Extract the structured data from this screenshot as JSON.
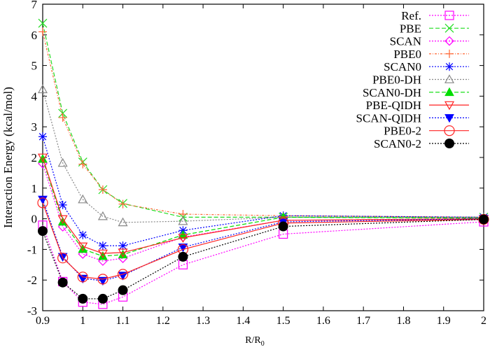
{
  "chart_data": {
    "type": "line",
    "title": "",
    "xlabel": "R/R",
    "xlabel_sub": "0",
    "ylabel": "Interaction Energy (kcal/mol)",
    "xlim": [
      0.9,
      2.0
    ],
    "ylim": [
      -3,
      7
    ],
    "xticks": [
      0.9,
      1.0,
      1.1,
      1.2,
      1.3,
      1.4,
      1.5,
      1.6,
      1.7,
      1.8,
      1.9,
      2.0
    ],
    "xtick_labels": [
      "0.9",
      "1",
      "1.1",
      "1.2",
      "1.3",
      "1.4",
      "1.5",
      "1.6",
      "1.7",
      "1.8",
      "1.9",
      "2"
    ],
    "yticks": [
      -3,
      -2,
      -1,
      0,
      1,
      2,
      3,
      4,
      5,
      6,
      7
    ],
    "ytick_labels": [
      "-3",
      "-2",
      "-1",
      "0",
      "1",
      "2",
      "3",
      "4",
      "5",
      "6",
      "7"
    ],
    "grid": false,
    "legend_position": "top-right",
    "x": [
      0.9,
      0.95,
      1.0,
      1.05,
      1.1,
      1.25,
      1.5,
      2.0
    ],
    "series": [
      {
        "name": "Ref.",
        "color": "#ff00ff",
        "marker": "open-square",
        "dash": "dotted",
        "values": [
          -0.21,
          -2.05,
          -2.72,
          -2.79,
          -2.55,
          -1.5,
          -0.5,
          -0.1
        ]
      },
      {
        "name": "PBE",
        "color": "#22dd22",
        "marker": "x",
        "dash": "dashed",
        "values": [
          6.38,
          3.44,
          1.85,
          0.95,
          0.5,
          0.05,
          0.05,
          0.05
        ]
      },
      {
        "name": "SCAN",
        "color": "#ff00ff",
        "marker": "open-diamond",
        "dash": "dotted",
        "values": [
          1.8,
          -0.26,
          -1.15,
          -1.38,
          -1.29,
          -0.6,
          -0.05,
          -0.03
        ]
      },
      {
        "name": "PBE0",
        "color": "#ff6633",
        "marker": "plus",
        "dash": "dashdot",
        "values": [
          6.1,
          3.3,
          1.78,
          0.95,
          0.48,
          0.15,
          0.1,
          0.05
        ]
      },
      {
        "name": "SCAN0",
        "color": "#0000ff",
        "marker": "asterisk",
        "dash": "dotted",
        "values": [
          2.68,
          0.45,
          -0.53,
          -0.88,
          -0.88,
          -0.38,
          0.1,
          0.05
        ]
      },
      {
        "name": "PBE0-DH",
        "color": "#888888",
        "marker": "open-triangle",
        "dash": "dotted",
        "values": [
          4.22,
          1.82,
          0.63,
          0.08,
          -0.12,
          -0.08,
          0.05,
          0.03
        ]
      },
      {
        "name": "SCAN0-DH",
        "color": "#00dd00",
        "marker": "filled-triangle",
        "dash": "dashed",
        "values": [
          1.95,
          -0.1,
          -0.99,
          -1.22,
          -1.17,
          -0.53,
          0.05,
          0.02
        ]
      },
      {
        "name": "PBE-QIDH",
        "color": "#ff2222",
        "marker": "open-down-triangle",
        "dash": "solid",
        "values": [
          2.0,
          -0.01,
          -0.9,
          -1.13,
          -1.1,
          -0.62,
          -0.05,
          0.0
        ]
      },
      {
        "name": "SCAN-QIDH",
        "color": "#0000ff",
        "marker": "filled-down-triangle",
        "dash": "dotted",
        "values": [
          0.63,
          -1.24,
          -1.95,
          -2.02,
          -1.85,
          -0.93,
          -0.1,
          0.0
        ]
      },
      {
        "name": "PBE0-2",
        "color": "#ff2222",
        "marker": "open-circle",
        "dash": "solid",
        "values": [
          0.52,
          -1.28,
          -1.9,
          -1.97,
          -1.81,
          -1.0,
          -0.14,
          -0.02
        ]
      },
      {
        "name": "SCAN0-2",
        "color": "#000000",
        "marker": "filled-circle",
        "dash": "dotted",
        "values": [
          -0.4,
          -2.08,
          -2.61,
          -2.61,
          -2.33,
          -1.24,
          -0.25,
          -0.02
        ]
      }
    ]
  }
}
